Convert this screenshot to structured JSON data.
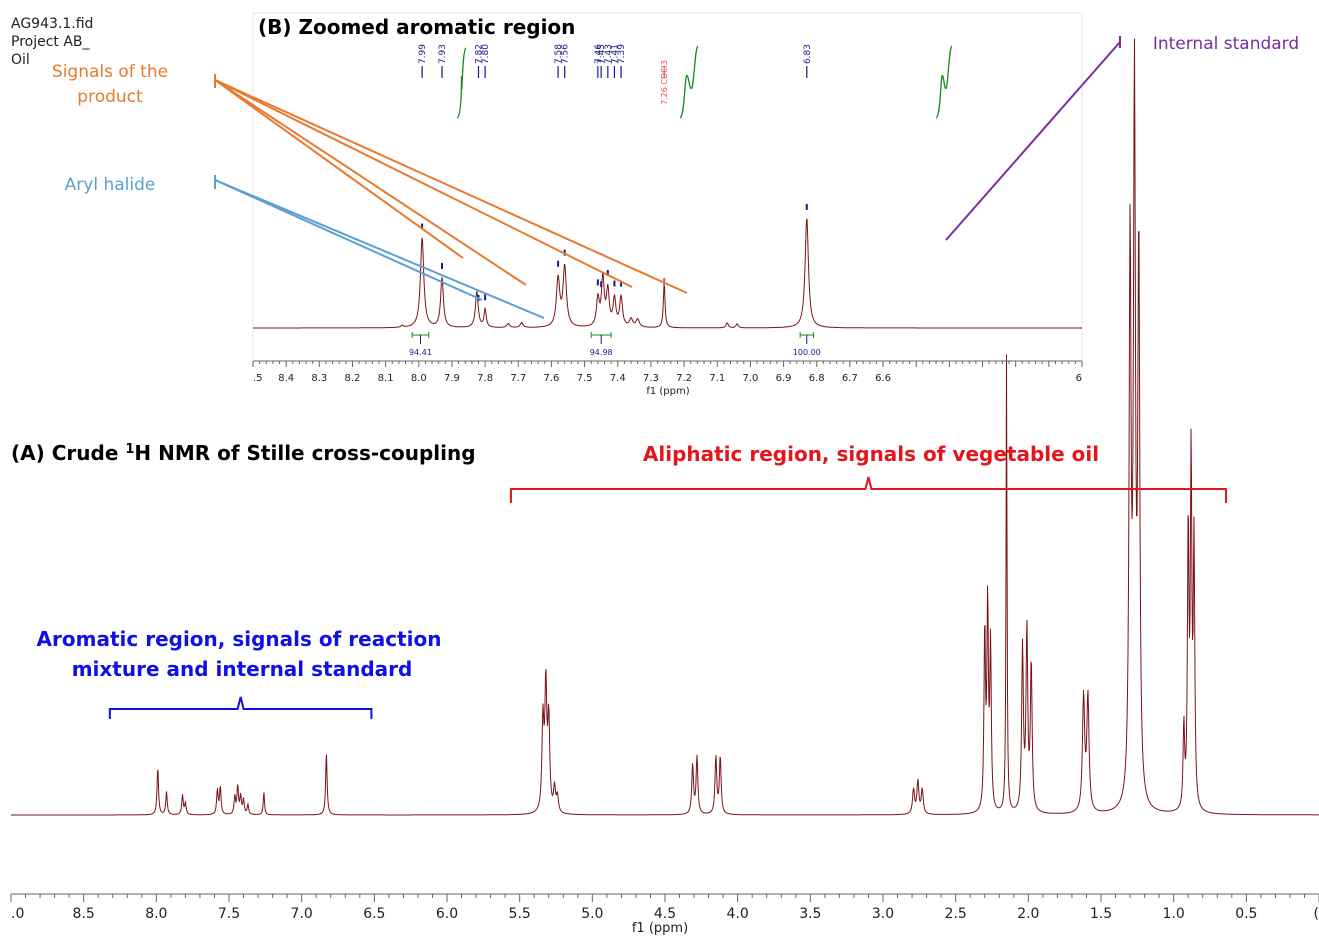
{
  "file_info": [
    "AG943.1.fid",
    "Project AB_",
    "Oil"
  ],
  "colors": {
    "spectrum": "#7a1418",
    "product": "#e87a2e",
    "aryl": "#5aa0d0",
    "standard": "#7a2e9c",
    "aliphatic": "#e4161c",
    "aromatic": "#1010e6",
    "integral": "#1a8a1a",
    "peak_tick": "#1a1a8c",
    "solvent": "#e85050"
  },
  "chart_data": [
    {
      "panel": "A",
      "type": "line",
      "title": "(A) Crude ¹H NMR of Stille cross-coupling",
      "title_sup": "1",
      "xlabel": "f1 (ppm)",
      "xlim": [
        9.0,
        0.0
      ],
      "xticks": [
        ".0",
        "8.5",
        "8.0",
        "7.5",
        "7.0",
        "6.5",
        "6.0",
        "5.5",
        "5.0",
        "4.5",
        "4.0",
        "3.5",
        "3.0",
        "2.5",
        "2.0",
        "1.5",
        "1.0",
        "0.5",
        "("
      ],
      "xtick_values": [
        9.0,
        8.5,
        8.0,
        7.5,
        7.0,
        6.5,
        6.0,
        5.5,
        5.0,
        4.5,
        4.0,
        3.5,
        3.0,
        2.5,
        2.0,
        1.5,
        1.0,
        0.5,
        0.0
      ],
      "peaks": [
        {
          "ppm": 7.99,
          "h": 0.058,
          "w": 0.006
        },
        {
          "ppm": 7.93,
          "h": 0.028,
          "w": 0.006
        },
        {
          "ppm": 7.82,
          "h": 0.024,
          "w": 0.006
        },
        {
          "ppm": 7.8,
          "h": 0.014,
          "w": 0.006
        },
        {
          "ppm": 7.58,
          "h": 0.03,
          "w": 0.006
        },
        {
          "ppm": 7.56,
          "h": 0.034,
          "w": 0.006
        },
        {
          "ppm": 7.46,
          "h": 0.022,
          "w": 0.006
        },
        {
          "ppm": 7.44,
          "h": 0.034,
          "w": 0.006
        },
        {
          "ppm": 7.42,
          "h": 0.022,
          "w": 0.006
        },
        {
          "ppm": 7.4,
          "h": 0.018,
          "w": 0.006
        },
        {
          "ppm": 7.37,
          "h": 0.012,
          "w": 0.006
        },
        {
          "ppm": 7.26,
          "h": 0.028,
          "w": 0.005
        },
        {
          "ppm": 6.83,
          "h": 0.075,
          "w": 0.006
        },
        {
          "ppm": 5.34,
          "h": 0.11,
          "w": 0.008
        },
        {
          "ppm": 5.32,
          "h": 0.15,
          "w": 0.008
        },
        {
          "ppm": 5.3,
          "h": 0.11,
          "w": 0.008
        },
        {
          "ppm": 5.26,
          "h": 0.03,
          "w": 0.008
        },
        {
          "ppm": 5.24,
          "h": 0.02,
          "w": 0.008
        },
        {
          "ppm": 4.31,
          "h": 0.06,
          "w": 0.007
        },
        {
          "ppm": 4.28,
          "h": 0.07,
          "w": 0.007
        },
        {
          "ppm": 4.15,
          "h": 0.07,
          "w": 0.007
        },
        {
          "ppm": 4.12,
          "h": 0.07,
          "w": 0.007
        },
        {
          "ppm": 2.79,
          "h": 0.03,
          "w": 0.008
        },
        {
          "ppm": 2.76,
          "h": 0.04,
          "w": 0.008
        },
        {
          "ppm": 2.73,
          "h": 0.03,
          "w": 0.008
        },
        {
          "ppm": 2.3,
          "h": 0.22,
          "w": 0.006
        },
        {
          "ppm": 2.28,
          "h": 0.25,
          "w": 0.006
        },
        {
          "ppm": 2.26,
          "h": 0.2,
          "w": 0.006
        },
        {
          "ppm": 2.15,
          "h": 0.56,
          "w": 0.004
        },
        {
          "ppm": 2.04,
          "h": 0.2,
          "w": 0.007
        },
        {
          "ppm": 2.01,
          "h": 0.22,
          "w": 0.007
        },
        {
          "ppm": 1.98,
          "h": 0.18,
          "w": 0.007
        },
        {
          "ppm": 1.62,
          "h": 0.14,
          "w": 0.009
        },
        {
          "ppm": 1.59,
          "h": 0.14,
          "w": 0.009
        },
        {
          "ppm": 1.3,
          "h": 0.68,
          "w": 0.008
        },
        {
          "ppm": 1.27,
          "h": 0.86,
          "w": 0.008
        },
        {
          "ppm": 1.24,
          "h": 0.67,
          "w": 0.008
        },
        {
          "ppm": 0.9,
          "h": 0.34,
          "w": 0.006
        },
        {
          "ppm": 0.88,
          "h": 0.42,
          "w": 0.006
        },
        {
          "ppm": 0.86,
          "h": 0.32,
          "w": 0.006
        },
        {
          "ppm": 0.93,
          "h": 0.1,
          "w": 0.006
        }
      ],
      "annotations": [
        {
          "text": "Aliphatic region, signals of vegetable oil",
          "from": 5.56,
          "to": 0.64
        },
        {
          "text_lines": [
            "Aromatic region, signals of reaction",
            "mixture and internal standard"
          ],
          "from": 8.32,
          "to": 6.52
        }
      ]
    },
    {
      "panel": "B",
      "type": "line",
      "title": "(B) Zoomed aromatic region",
      "xlabel": "f1 (ppm)",
      "xlim": [
        8.5,
        6.0
      ],
      "xticks": [
        ".5",
        "8.4",
        "8.3",
        "8.2",
        "8.1",
        "8.0",
        "7.9",
        "7.8",
        "7.7",
        "7.6",
        "7.5",
        "7.4",
        "7.3",
        "7.2",
        "7.1",
        "7.0",
        "6.9",
        "6.8",
        "6.7",
        "6.6",
        "6"
      ],
      "xtick_values": [
        8.5,
        8.4,
        8.3,
        8.2,
        8.1,
        8.0,
        7.9,
        7.8,
        7.7,
        7.6,
        7.5,
        7.4,
        7.3,
        7.2,
        7.1,
        7.0,
        6.9,
        6.8,
        6.7,
        6.6,
        6.0
      ],
      "peak_labels": [
        "7.99",
        "7.93",
        "7.82",
        "7.80",
        "7.58",
        "7.56",
        "7.46",
        "7.45",
        "7.43",
        "7.41",
        "7.39",
        "6.83"
      ],
      "solvent_label": "7.26 CDCl3",
      "integrals": [
        {
          "from": 8.02,
          "to": 7.97,
          "value": "94.41"
        },
        {
          "from": 7.48,
          "to": 7.42,
          "value": "94.98"
        },
        {
          "from": 6.85,
          "to": 6.81,
          "value": "100.00"
        }
      ],
      "peaks": [
        {
          "ppm": 7.99,
          "h": 0.9,
          "w": 0.006
        },
        {
          "ppm": 7.93,
          "h": 0.5,
          "w": 0.005
        },
        {
          "ppm": 7.825,
          "h": 0.36,
          "w": 0.005
        },
        {
          "ppm": 7.8,
          "h": 0.18,
          "w": 0.004
        },
        {
          "ppm": 7.73,
          "h": 0.04,
          "w": 0.005
        },
        {
          "ppm": 7.69,
          "h": 0.05,
          "w": 0.005
        },
        {
          "ppm": 7.58,
          "h": 0.48,
          "w": 0.006
        },
        {
          "ppm": 7.56,
          "h": 0.6,
          "w": 0.006
        },
        {
          "ppm": 7.46,
          "h": 0.28,
          "w": 0.005
        },
        {
          "ppm": 7.445,
          "h": 0.48,
          "w": 0.005
        },
        {
          "ppm": 7.43,
          "h": 0.36,
          "w": 0.005
        },
        {
          "ppm": 7.41,
          "h": 0.28,
          "w": 0.005
        },
        {
          "ppm": 7.39,
          "h": 0.3,
          "w": 0.005
        },
        {
          "ppm": 7.36,
          "h": 0.08,
          "w": 0.006
        },
        {
          "ppm": 7.34,
          "h": 0.08,
          "w": 0.006
        },
        {
          "ppm": 7.26,
          "h": 0.45,
          "w": 0.003
        },
        {
          "ppm": 7.07,
          "h": 0.05,
          "w": 0.004
        },
        {
          "ppm": 7.04,
          "h": 0.04,
          "w": 0.004
        },
        {
          "ppm": 6.83,
          "h": 1.1,
          "w": 0.006
        },
        {
          "ppm": 8.05,
          "h": 0.02,
          "w": 0.004
        }
      ]
    }
  ],
  "callouts": {
    "product": {
      "text_lines": [
        "Signals of the",
        "product"
      ]
    },
    "aryl": {
      "text": "Aryl halide"
    },
    "standard": {
      "text": "Internal standard"
    }
  }
}
